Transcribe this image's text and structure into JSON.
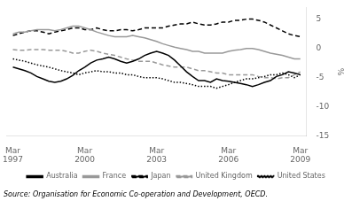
{
  "chart_data": {
    "type": "line",
    "y_label": "%",
    "annotations": [
      "Source: Organisation for Economic Co-operation and Development, OECD."
    ],
    "xlim": [
      1997.0,
      2009.5
    ],
    "xticks": [
      {
        "value": 1997.25,
        "label": "Mar\n1997"
      },
      {
        "value": 2000.25,
        "label": "Mar\n2000"
      },
      {
        "value": 2003.25,
        "label": "Mar\n2003"
      },
      {
        "value": 2006.25,
        "label": "Mar\n2006"
      },
      {
        "value": 2009.25,
        "label": "Mar\n2009"
      }
    ],
    "ylim": [
      -15,
      7
    ],
    "yticks": [
      -15,
      -10,
      -5,
      0,
      5
    ],
    "grid": false,
    "legend": "bottom",
    "x": [
      1997.25,
      1997.5,
      1997.75,
      1998.0,
      1998.25,
      1998.5,
      1998.75,
      1999.0,
      1999.25,
      1999.5,
      1999.75,
      2000.0,
      2000.25,
      2000.5,
      2000.75,
      2001.0,
      2001.25,
      2001.5,
      2001.75,
      2002.0,
      2002.25,
      2002.5,
      2002.75,
      2003.0,
      2003.25,
      2003.5,
      2003.75,
      2004.0,
      2004.25,
      2004.5,
      2004.75,
      2005.0,
      2005.25,
      2005.5,
      2005.75,
      2006.0,
      2006.25,
      2006.5,
      2006.75,
      2007.0,
      2007.25,
      2007.5,
      2007.75,
      2008.0,
      2008.25,
      2008.5,
      2008.75,
      2009.0,
      2009.25
    ],
    "series": [
      {
        "name": "Australia",
        "color": "#000000",
        "line_style": "solid",
        "values": [
          -3.2,
          -3.5,
          -3.8,
          -4.2,
          -4.8,
          -5.2,
          -5.6,
          -5.8,
          -5.6,
          -5.2,
          -4.6,
          -3.8,
          -3.2,
          -2.5,
          -2.0,
          -1.8,
          -1.5,
          -1.8,
          -2.2,
          -2.5,
          -2.2,
          -1.8,
          -1.2,
          -0.8,
          -0.5,
          -0.8,
          -1.2,
          -2.0,
          -3.0,
          -4.0,
          -4.8,
          -5.5,
          -5.5,
          -5.8,
          -5.2,
          -5.5,
          -5.6,
          -5.8,
          -6.0,
          -6.2,
          -6.5,
          -6.2,
          -5.8,
          -5.5,
          -4.8,
          -4.5,
          -4.0,
          -4.2,
          -4.5
        ]
      },
      {
        "name": "France",
        "color": "#999999",
        "line_style": "solid",
        "values": [
          2.5,
          2.8,
          2.8,
          3.0,
          3.2,
          3.2,
          3.2,
          3.0,
          3.2,
          3.5,
          3.8,
          3.8,
          3.5,
          3.2,
          2.8,
          2.5,
          2.2,
          2.0,
          2.0,
          2.0,
          2.2,
          2.0,
          1.8,
          1.5,
          1.2,
          0.8,
          0.5,
          0.2,
          0.0,
          -0.2,
          -0.5,
          -0.5,
          -0.8,
          -0.8,
          -0.8,
          -0.8,
          -0.5,
          -0.3,
          -0.2,
          0.0,
          0.0,
          -0.2,
          -0.5,
          -0.8,
          -1.0,
          -1.2,
          -1.5,
          -1.8,
          -1.8
        ]
      },
      {
        "name": "Japan",
        "color": "#000000",
        "line_style": "dashed",
        "values": [
          2.2,
          2.5,
          2.8,
          3.0,
          3.0,
          2.8,
          2.5,
          2.8,
          3.0,
          3.2,
          3.5,
          3.5,
          3.2,
          3.2,
          3.5,
          3.2,
          3.0,
          3.0,
          3.2,
          3.2,
          3.0,
          3.2,
          3.5,
          3.5,
          3.5,
          3.5,
          3.8,
          4.0,
          4.2,
          4.2,
          4.5,
          4.2,
          4.0,
          4.0,
          4.2,
          4.5,
          4.5,
          4.8,
          4.8,
          5.0,
          5.0,
          4.8,
          4.5,
          4.0,
          3.5,
          3.0,
          2.5,
          2.2,
          2.0
        ]
      },
      {
        "name": "United Kingdom",
        "color": "#999999",
        "line_style": "dashed",
        "values": [
          -0.2,
          -0.3,
          -0.3,
          -0.2,
          -0.2,
          -0.2,
          -0.3,
          -0.3,
          -0.3,
          -0.5,
          -0.8,
          -0.8,
          -0.5,
          -0.3,
          -0.5,
          -0.8,
          -1.0,
          -1.2,
          -1.5,
          -1.8,
          -2.0,
          -2.2,
          -2.2,
          -2.2,
          -2.5,
          -2.8,
          -3.0,
          -3.2,
          -3.2,
          -3.2,
          -3.5,
          -3.8,
          -3.8,
          -4.0,
          -4.2,
          -4.2,
          -4.5,
          -4.5,
          -4.5,
          -4.5,
          -4.5,
          -4.8,
          -5.0,
          -5.0,
          -5.2,
          -5.0,
          -5.0,
          -4.5,
          -4.0
        ]
      },
      {
        "name": "United States",
        "color": "#000000",
        "line_style": "dotted",
        "values": [
          -1.8,
          -2.0,
          -2.2,
          -2.5,
          -2.8,
          -3.0,
          -3.2,
          -3.5,
          -3.8,
          -4.0,
          -4.2,
          -4.5,
          -4.2,
          -4.0,
          -3.8,
          -4.0,
          -4.0,
          -4.2,
          -4.2,
          -4.5,
          -4.5,
          -4.8,
          -5.0,
          -5.0,
          -5.0,
          -5.2,
          -5.5,
          -5.8,
          -5.8,
          -6.0,
          -6.2,
          -6.5,
          -6.5,
          -6.5,
          -6.8,
          -6.5,
          -6.2,
          -5.8,
          -5.5,
          -5.2,
          -5.2,
          -5.0,
          -4.8,
          -4.5,
          -4.5,
          -4.2,
          -4.5,
          -5.0,
          -4.5
        ]
      }
    ]
  }
}
